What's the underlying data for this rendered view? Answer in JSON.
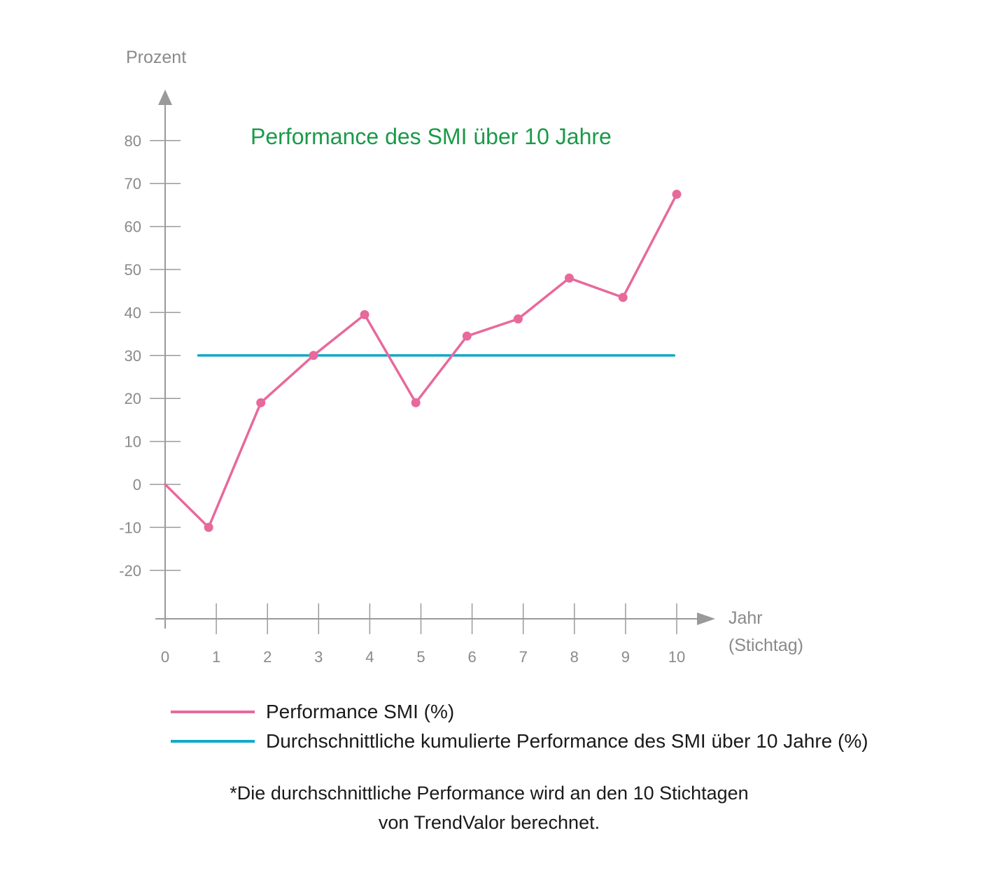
{
  "chart_data": {
    "type": "line",
    "title": "Performance des SMI über 10 Jahre",
    "ylabel": "Prozent",
    "xlabel_lines": [
      "Jahr",
      "(Stichtag)"
    ],
    "x": [
      0,
      1,
      2,
      3,
      4,
      5,
      6,
      7,
      8,
      9,
      10
    ],
    "x_tick_labels": [
      "0",
      "1",
      "2",
      "3",
      "4",
      "5",
      "6",
      "7",
      "8",
      "9",
      "10"
    ],
    "y_ticks": [
      80,
      70,
      60,
      50,
      40,
      30,
      20,
      10,
      0,
      -10,
      -20
    ],
    "y_tick_labels": [
      "80",
      "70",
      "60",
      "50",
      "40",
      "30",
      "20",
      "10",
      "0",
      "-10",
      "-20"
    ],
    "ylim": [
      -31,
      92
    ],
    "xlim": [
      0,
      10.8
    ],
    "grid": false,
    "legend_position": "bottom",
    "series": [
      {
        "name": "Performance SMI (%)",
        "color": "#e8699b",
        "style": "line-with-markers",
        "points": [
          {
            "x": 0,
            "y": 0
          },
          {
            "x": 0.85,
            "y": -10
          },
          {
            "x": 1.87,
            "y": 19
          },
          {
            "x": 2.9,
            "y": 30
          },
          {
            "x": 3.9,
            "y": 39.5
          },
          {
            "x": 4.9,
            "y": 19
          },
          {
            "x": 5.9,
            "y": 34.5
          },
          {
            "x": 6.9,
            "y": 38.5
          },
          {
            "x": 7.9,
            "y": 48
          },
          {
            "x": 8.95,
            "y": 43.5
          },
          {
            "x": 10,
            "y": 67.5
          }
        ]
      },
      {
        "name": "Durchschnittliche kumulierte Performance des SMI über 10 Jahre (%)",
        "color": "#11a9c9",
        "style": "line",
        "points": [
          {
            "x": 0.65,
            "y": 30
          },
          {
            "x": 9.95,
            "y": 30
          }
        ]
      }
    ],
    "axis_color": "#9a9a9a"
  },
  "footnote": {
    "line1": "*Die durchschnittliche Performance wird an den 10 Stichtagen",
    "line2": "von TrendValor berechnet."
  }
}
